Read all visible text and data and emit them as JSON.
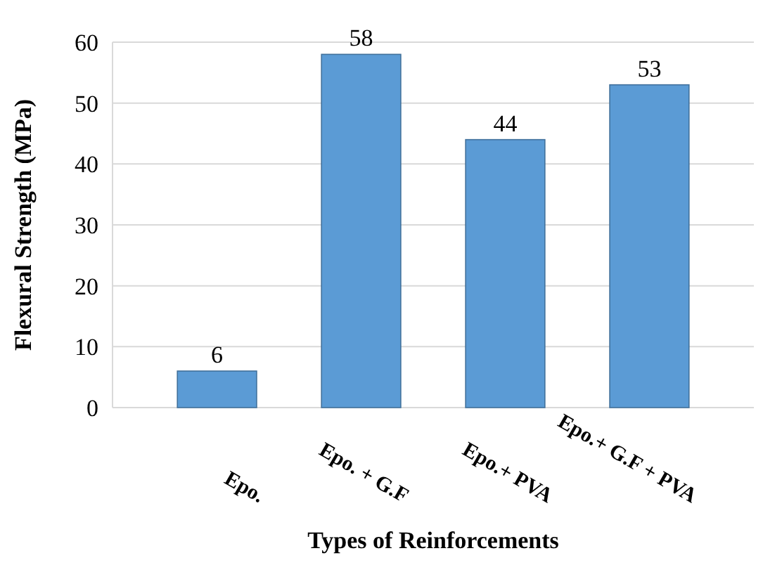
{
  "chart_data": {
    "type": "bar",
    "xlabel": "Types of Reinforcements",
    "ylabel": "Flexural Strength (MPa)",
    "categories": [
      "Epo.",
      "Epo. + G.F",
      "Epo.+ PVA",
      "Epo.+ G.F + PVA"
    ],
    "values": [
      6,
      58,
      44,
      53
    ],
    "color": "#5b9bd5",
    "ylim": [
      0,
      60
    ],
    "yticks": [
      0,
      10,
      20,
      30,
      40,
      50,
      60
    ],
    "grid": "y",
    "data_labels": true
  }
}
